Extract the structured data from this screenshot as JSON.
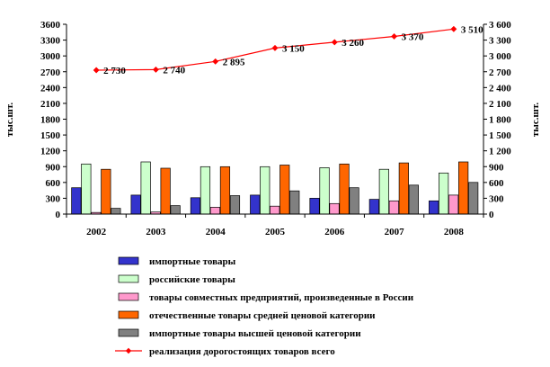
{
  "chart_data": {
    "type": "bar+line",
    "categories": [
      "2002",
      "2003",
      "2004",
      "2005",
      "2006",
      "2007",
      "2008"
    ],
    "ylabel_left": "тыс.шт.",
    "ylabel_right": "тыс.шт.",
    "ylim_left": [
      0,
      3600
    ],
    "ylim_right": [
      0,
      3600
    ],
    "yticks_left": [
      "0",
      "300",
      "600",
      "900",
      "1200",
      "1500",
      "1800",
      "2100",
      "2400",
      "2700",
      "3000",
      "3300",
      "3600"
    ],
    "yticks_right": [
      "0",
      "300",
      "600",
      "900",
      "1 200",
      "1 500",
      "1 800",
      "2 100",
      "2 400",
      "2 700",
      "3 000",
      "3 300",
      "3 600"
    ],
    "series": [
      {
        "name": "импортные товары",
        "kind": "bar",
        "color": "#3333cc",
        "values": [
          500,
          360,
          310,
          360,
          300,
          280,
          250
        ]
      },
      {
        "name": "российские товары",
        "kind": "bar",
        "color": "#ccffcc",
        "values": [
          950,
          990,
          900,
          900,
          880,
          850,
          780
        ]
      },
      {
        "name": "товары совместных предприятий, произведенные в России",
        "kind": "bar",
        "color": "#ff99cc",
        "values": [
          30,
          40,
          130,
          150,
          200,
          250,
          360
        ]
      },
      {
        "name": "отечественные товары средней ценовой категории",
        "kind": "bar",
        "color": "#ff6600",
        "values": [
          850,
          870,
          900,
          930,
          950,
          970,
          990
        ]
      },
      {
        "name": "импортные товары высшей ценовой категории",
        "kind": "bar",
        "color": "#808080",
        "values": [
          110,
          160,
          350,
          440,
          500,
          550,
          600
        ]
      },
      {
        "name": "реализация дорогостоящих товаров всего",
        "kind": "line",
        "color": "#ff0000",
        "values": [
          2730,
          2740,
          2895,
          3150,
          3260,
          3370,
          3510
        ],
        "labels": [
          "2 730",
          "2 740",
          "2 895",
          "3 150",
          "3 260",
          "3 370",
          "3 510"
        ]
      }
    ],
    "legend_position": "bottom"
  }
}
